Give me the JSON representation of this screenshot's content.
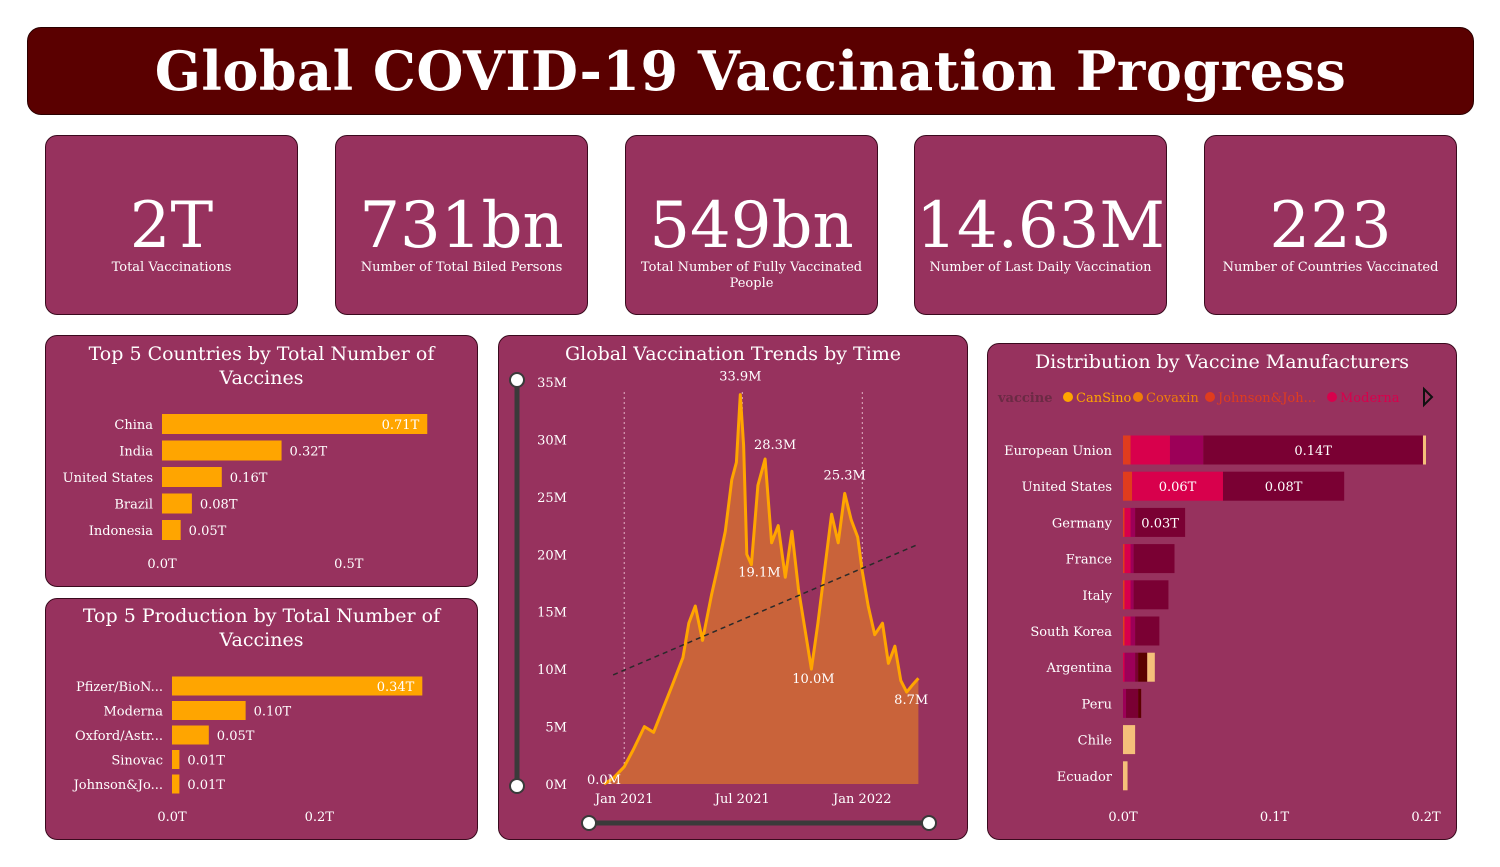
{
  "header": {
    "title": "Global COVID-19 Vaccination Progress"
  },
  "kpis": [
    {
      "value": "2T",
      "label": "Total Vaccinations"
    },
    {
      "value": "731bn",
      "label": "Number of Total Biled Persons"
    },
    {
      "value": "549bn",
      "label": "Total Number of Fully Vaccinated People"
    },
    {
      "value": "14.63M",
      "label": "Number of Last Daily Vaccination"
    },
    {
      "value": "223",
      "label": "Number of Countries Vaccinated"
    }
  ],
  "colors": {
    "panel": "#97325e",
    "bar": "#ffa500",
    "area": "#c9633a",
    "header": "#5a0000",
    "CanSino": "#ffa500",
    "Covaxin": "#f07d0a",
    "JohnsonJohnson": "#e03c1e",
    "Moderna": "#d8004c",
    "Pfizer": "#9c0058",
    "Oxford": "#7a0033",
    "Sinopharm": "#5a0000",
    "Sinovac": "#f5c07a"
  },
  "chart_data": [
    {
      "type": "bar",
      "orientation": "horizontal",
      "title": "Top 5 Countries by Total Number of Vaccines",
      "categories": [
        "China",
        "India",
        "United States",
        "Brazil",
        "Indonesia"
      ],
      "values": [
        0.71,
        0.32,
        0.16,
        0.08,
        0.05
      ],
      "value_labels": [
        "0.71T",
        "0.32T",
        "0.16T",
        "0.08T",
        "0.05T"
      ],
      "unit": "T",
      "xlim": [
        0,
        0.72
      ],
      "x_ticks": [
        0,
        0.5
      ],
      "x_tick_labels": [
        "0.0T",
        "0.5T"
      ]
    },
    {
      "type": "bar",
      "orientation": "horizontal",
      "title": "Top 5 Production by Total Number of Vaccines",
      "categories": [
        "Pfizer/BioN...",
        "Moderna",
        "Oxford/Astr...",
        "Sinovac",
        "Johnson&Jo..."
      ],
      "values": [
        0.34,
        0.1,
        0.05,
        0.01,
        0.01
      ],
      "value_labels": [
        "0.34T",
        "0.10T",
        "0.05T",
        "0.01T",
        "0.01T"
      ],
      "unit": "T",
      "xlim": [
        0,
        0.345
      ],
      "x_ticks": [
        0,
        0.2
      ],
      "x_tick_labels": [
        "0.0T",
        "0.2T"
      ]
    },
    {
      "type": "area",
      "title": "Global Vaccination Trends by Time",
      "x_tick_labels": [
        "Jan 2021",
        "Jul 2021",
        "Jan 2022"
      ],
      "x_ticks": [
        "2021-01-01",
        "2021-07-01",
        "2022-01-01"
      ],
      "xlim": [
        "2020-12-01",
        "2022-04-01"
      ],
      "ylim": [
        0,
        35
      ],
      "y_unit": "M",
      "y_ticks": [
        0,
        5,
        10,
        15,
        20,
        25,
        30,
        35
      ],
      "y_tick_labels": [
        "0M",
        "5M",
        "10M",
        "15M",
        "20M",
        "25M",
        "30M",
        "35M"
      ],
      "x": [
        "2020-12-01",
        "2020-12-15",
        "2021-01-01",
        "2021-01-15",
        "2021-02-01",
        "2021-02-15",
        "2021-03-01",
        "2021-03-15",
        "2021-04-01",
        "2021-04-10",
        "2021-04-20",
        "2021-05-01",
        "2021-05-15",
        "2021-05-25",
        "2021-06-05",
        "2021-06-15",
        "2021-06-22",
        "2021-06-28",
        "2021-07-03",
        "2021-07-08",
        "2021-07-15",
        "2021-07-25",
        "2021-08-05",
        "2021-08-15",
        "2021-08-25",
        "2021-09-05",
        "2021-09-15",
        "2021-09-25",
        "2021-10-05",
        "2021-10-15",
        "2021-10-25",
        "2021-11-05",
        "2021-11-15",
        "2021-11-25",
        "2021-12-05",
        "2021-12-15",
        "2021-12-25",
        "2022-01-01",
        "2022-01-10",
        "2022-01-20",
        "2022-02-01",
        "2022-02-10",
        "2022-02-20",
        "2022-03-01",
        "2022-03-10",
        "2022-03-20",
        "2022-03-28"
      ],
      "values": [
        0.0,
        0.5,
        1.5,
        3.0,
        5.0,
        4.5,
        6.5,
        8.5,
        11.0,
        14.0,
        15.5,
        12.5,
        16.5,
        19.0,
        22.0,
        26.5,
        28.0,
        33.9,
        29.5,
        20.0,
        19.1,
        26.0,
        28.3,
        21.0,
        22.5,
        18.0,
        22.0,
        17.0,
        13.5,
        10.0,
        14.0,
        19.0,
        23.5,
        21.0,
        25.3,
        23.0,
        21.5,
        18.5,
        15.5,
        13.0,
        14.0,
        10.5,
        12.0,
        9.0,
        8.0,
        8.7,
        9.2
      ],
      "annotations": [
        {
          "x": "2020-12-01",
          "y": 0.0,
          "label": "0.0M"
        },
        {
          "x": "2021-06-28",
          "y": 33.9,
          "label": "33.9M"
        },
        {
          "x": "2021-08-05",
          "y": 28.3,
          "label": "28.3M"
        },
        {
          "x": "2021-07-15",
          "y": 19.1,
          "label": "19.1M"
        },
        {
          "x": "2021-12-05",
          "y": 25.3,
          "label": "25.3M"
        },
        {
          "x": "2021-10-15",
          "y": 10.0,
          "label": "10.0M"
        },
        {
          "x": "2022-03-20",
          "y": 8.7,
          "label": "8.7M"
        }
      ],
      "trendline": {
        "from": [
          "2020-12-15",
          9.5
        ],
        "to": [
          "2022-03-25",
          20.8
        ]
      }
    },
    {
      "type": "bar",
      "orientation": "horizontal",
      "stacked": true,
      "title": "Distribution by Vaccine Manufacturers",
      "legend_title": "vaccine",
      "legend": [
        "CanSino",
        "Covaxin",
        "Johnson&Joh...",
        "Moderna"
      ],
      "legend_placement": "top",
      "categories": [
        "European Union",
        "United States",
        "Germany",
        "France",
        "Italy",
        "South Korea",
        "Argentina",
        "Peru",
        "Chile",
        "Ecuador"
      ],
      "series": [
        {
          "name": "",
          "color": "#e03c1e",
          "values": [
            0.005,
            0.006,
            0.001,
            0.001,
            0.001,
            0.001,
            0.0,
            0.0,
            0.0,
            0.0
          ]
        },
        {
          "name": "",
          "color": "#d8004c",
          "values": [
            0.026,
            0.06,
            0.004,
            0.004,
            0.004,
            0.004,
            0.001,
            0.0,
            0.0,
            0.0
          ]
        },
        {
          "name": "",
          "color": "#9c0058",
          "values": [
            0.022,
            0.0,
            0.003,
            0.002,
            0.002,
            0.003,
            0.007,
            0.002,
            0.0,
            0.0
          ]
        },
        {
          "name": "",
          "color": "#7a0033",
          "values": [
            0.145,
            0.08,
            0.033,
            0.027,
            0.023,
            0.016,
            0.002,
            0.008,
            0.0,
            0.0
          ]
        },
        {
          "name": "",
          "color": "#5a0000",
          "values": [
            0.0,
            0.0,
            0.0,
            0.0,
            0.0,
            0.0,
            0.006,
            0.002,
            0.0,
            0.0
          ]
        },
        {
          "name": "",
          "color": "#f5c07a",
          "values": [
            0.002,
            0.0,
            0.0,
            0.0,
            0.0,
            0.0,
            0.005,
            0.0,
            0.008,
            0.003
          ]
        }
      ],
      "value_labels": [
        {
          "row": 0,
          "seg": 3,
          "label": "0.14T"
        },
        {
          "row": 1,
          "seg": 1,
          "label": "0.06T"
        },
        {
          "row": 1,
          "seg": 3,
          "label": "0.08T"
        },
        {
          "row": 2,
          "seg": 3,
          "label": "0.03T"
        }
      ],
      "xlim": [
        0,
        0.2
      ],
      "x_ticks": [
        0,
        0.1,
        0.2
      ],
      "x_tick_labels": [
        "0.0T",
        "0.1T",
        "0.2T"
      ]
    }
  ]
}
